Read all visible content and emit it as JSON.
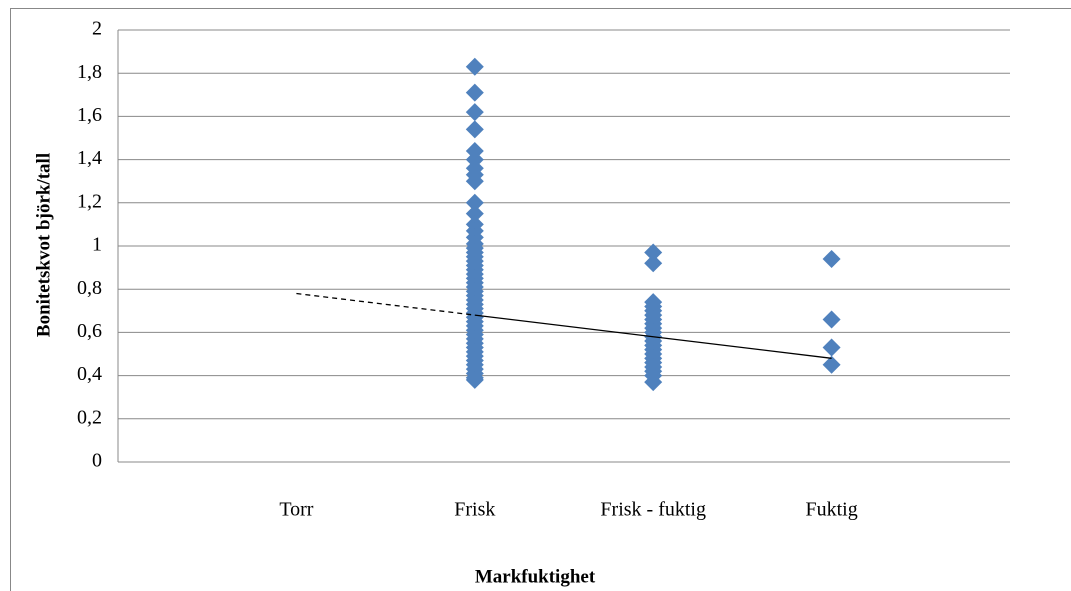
{
  "chart_data": {
    "type": "scatter",
    "y_axis_label": "Bonitetskvot björk/tall",
    "x_axis_label": "Markfuktighet",
    "categories": [
      "Torr",
      "Frisk",
      "Frisk - fuktig",
      "Fuktig"
    ],
    "color": "#4f81bd",
    "values": [
      [],
      [
        1.83,
        1.71,
        1.62,
        1.54,
        1.44,
        1.4,
        1.36,
        1.33,
        1.3,
        1.2,
        1.15,
        1.1,
        1.07,
        1.04,
        1.01,
        0.99,
        0.97,
        0.95,
        0.93,
        0.91,
        0.89,
        0.87,
        0.85,
        0.83,
        0.81,
        0.79,
        0.77,
        0.75,
        0.73,
        0.71,
        0.69,
        0.67,
        0.65,
        0.63,
        0.61,
        0.59,
        0.57,
        0.55,
        0.53,
        0.51,
        0.49,
        0.47,
        0.45,
        0.43,
        0.41,
        0.39,
        0.38
      ],
      [
        0.97,
        0.92,
        0.74,
        0.72,
        0.7,
        0.68,
        0.66,
        0.64,
        0.62,
        0.6,
        0.58,
        0.56,
        0.54,
        0.52,
        0.5,
        0.48,
        0.46,
        0.44,
        0.42,
        0.4,
        0.37
      ],
      [
        0.94,
        0.66,
        0.53,
        0.45
      ]
    ],
    "lines": [
      {
        "style": "dashed",
        "values": [
          0.78,
          0.68,
          null,
          null
        ]
      },
      {
        "style": "solid",
        "values": [
          null,
          0.68,
          0.58,
          0.48
        ]
      }
    ],
    "ylim": [
      0,
      2
    ],
    "yticks": [
      0,
      {
        "value": 0.2,
        "label": "0,2"
      },
      {
        "value": 0.4,
        "label": "0,4"
      },
      {
        "value": 0.6,
        "label": "0,6"
      },
      {
        "value": 0.8,
        "label": "0,8"
      },
      1,
      {
        "value": 1.2,
        "label": "1,2"
      },
      {
        "value": 1.4,
        "label": "1,4"
      },
      {
        "value": 1.6,
        "label": "1,6"
      },
      {
        "value": 1.8,
        "label": "1,8"
      },
      2
    ],
    "grid": true
  }
}
